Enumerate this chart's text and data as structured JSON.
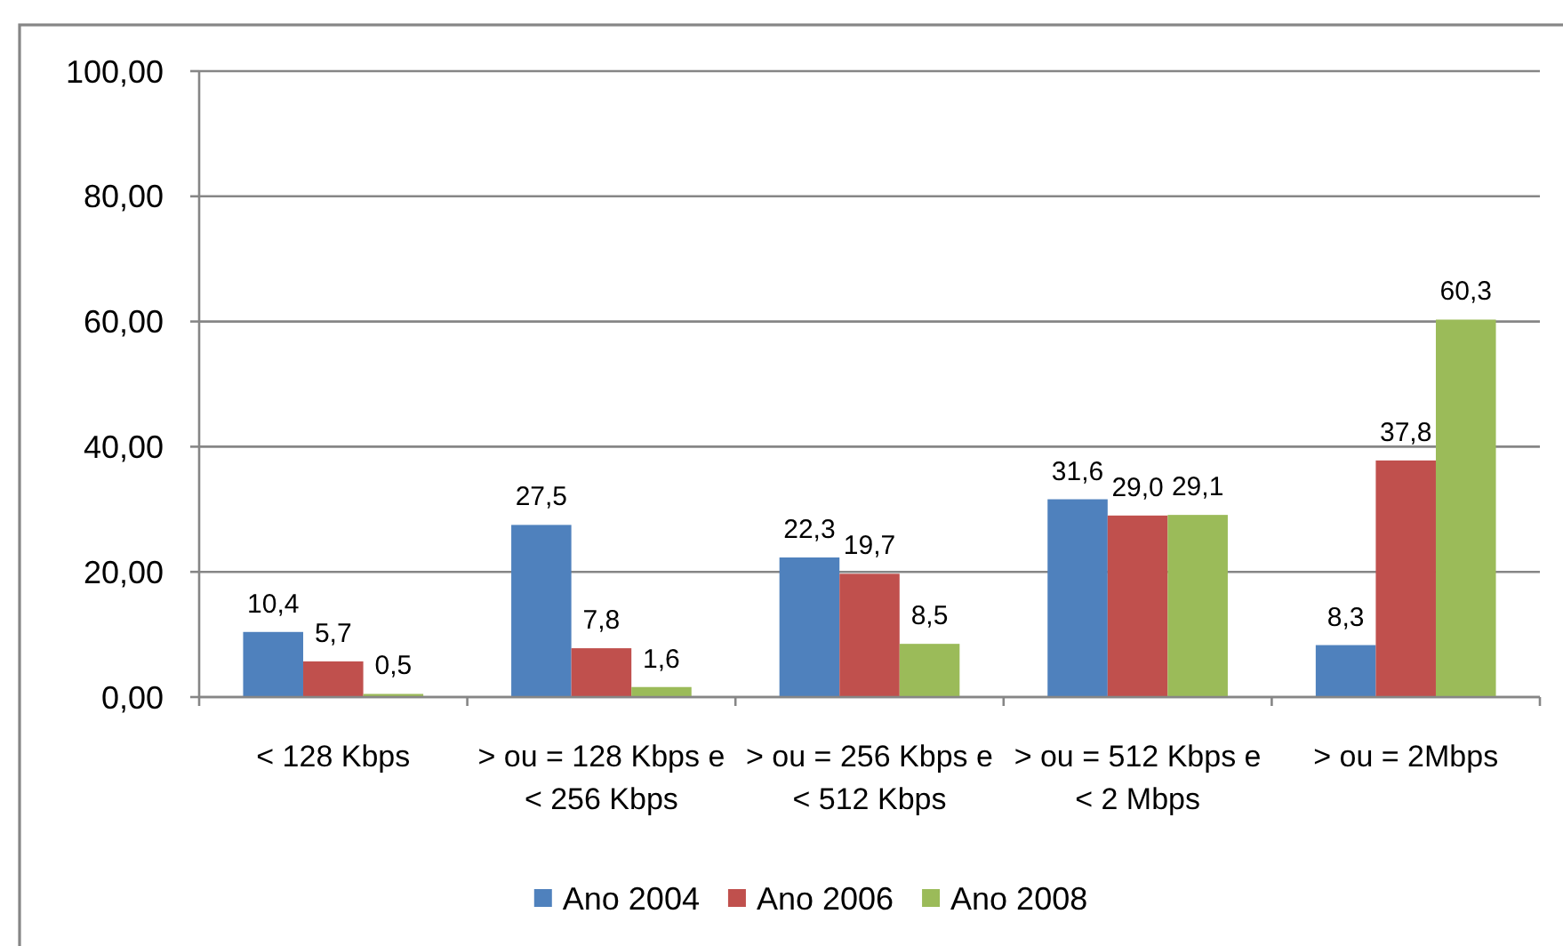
{
  "chart_data": {
    "type": "bar",
    "categories": [
      "< 128 Kbps",
      "> ou = 128 Kbps e < 256 Kbps",
      "> ou = 256 Kbps e < 512 Kbps",
      "> ou = 512 Kbps e < 2 Mbps",
      "> ou = 2Mbps"
    ],
    "series": [
      {
        "name": "Ano 2004",
        "color": "#4f81bd",
        "values": [
          10.4,
          27.5,
          22.3,
          31.6,
          8.3
        ],
        "value_labels": [
          "10,4",
          "27,5",
          "22,3",
          "31,6",
          "8,3"
        ]
      },
      {
        "name": "Ano 2006",
        "color": "#c0504d",
        "values": [
          5.7,
          7.8,
          19.7,
          29.0,
          37.8
        ],
        "value_labels": [
          "5,7",
          "7,8",
          "19,7",
          "29,0",
          "37,8"
        ]
      },
      {
        "name": "Ano 2008",
        "color": "#9bbb59",
        "values": [
          0.5,
          1.6,
          8.5,
          29.1,
          60.3
        ],
        "value_labels": [
          "0,5",
          "1,6",
          "8,5",
          "29,1",
          "60,3"
        ]
      }
    ],
    "ylim": [
      0,
      100
    ],
    "yticks": [
      {
        "value": 0,
        "label": "0,00"
      },
      {
        "value": 20,
        "label": "20,00"
      },
      {
        "value": 40,
        "label": "40,00"
      },
      {
        "value": 60,
        "label": "60,00"
      },
      {
        "value": 80,
        "label": "80,00"
      },
      {
        "value": 100,
        "label": "100,00"
      }
    ],
    "grid": "y",
    "legend": "bottom"
  }
}
